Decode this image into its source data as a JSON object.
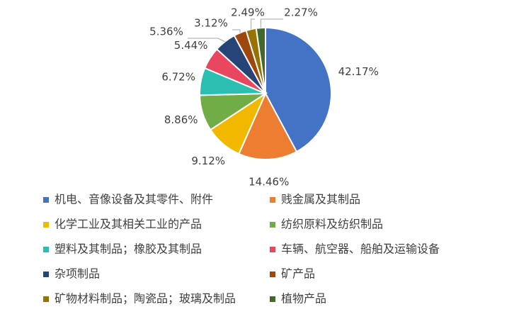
{
  "chart_data": {
    "type": "pie",
    "categories": [
      "机电、音像设备及其零件、附件",
      "贱金属及其制品",
      "化学工业及其相关工业的产品",
      "纺织原料及纺织制品",
      "塑料及其制品；橡胶及其制品",
      "车辆、航空器、船舶及运输设备",
      "杂项制品",
      "矿产品",
      "矿物材料制品；陶瓷品；玻璃及制品",
      "植物产品"
    ],
    "values": [
      42.17,
      14.46,
      9.12,
      8.86,
      6.72,
      5.44,
      5.36,
      3.12,
      2.49,
      2.27
    ],
    "value_labels": [
      "42.17%",
      "14.46%",
      "9.12%",
      "8.86%",
      "6.72%",
      "5.44%",
      "5.36%",
      "3.12%",
      "2.49%",
      "2.27%"
    ],
    "colors": [
      "#4472c4",
      "#ed7d31",
      "#f2b800",
      "#70ad47",
      "#2bbfb2",
      "#e8475f",
      "#264478",
      "#9e480e",
      "#997300",
      "#43682b"
    ],
    "legend": "bottom"
  }
}
